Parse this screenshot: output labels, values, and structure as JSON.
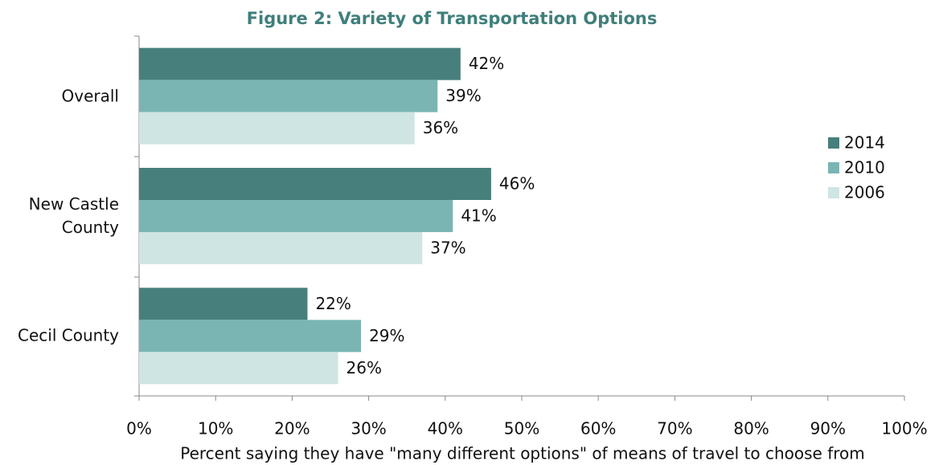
{
  "chart_data": {
    "type": "bar",
    "orientation": "horizontal",
    "title": "Figure 2: Variety of Transportation Options",
    "xlabel": "Percent saying they have \"many different options\" of means of travel to choose from",
    "categories": [
      "Overall",
      "New Castle County",
      "Cecil County"
    ],
    "series": [
      {
        "name": "2014",
        "color": "#477f7c",
        "values": [
          42,
          46,
          22
        ],
        "value_labels": [
          "42%",
          "46%",
          "22%"
        ]
      },
      {
        "name": "2010",
        "color": "#7ab5b3",
        "values": [
          39,
          41,
          29
        ],
        "value_labels": [
          "39%",
          "41%",
          "29%"
        ]
      },
      {
        "name": "2006",
        "color": "#cfe5e3",
        "values": [
          36,
          37,
          26
        ],
        "value_labels": [
          "36%",
          "37%",
          "26%"
        ]
      }
    ],
    "xlim": [
      0,
      100
    ],
    "xticks": [
      {
        "value": 0,
        "label": "0%"
      },
      {
        "value": 10,
        "label": "10%"
      },
      {
        "value": 20,
        "label": "20%"
      },
      {
        "value": 30,
        "label": "30%"
      },
      {
        "value": 40,
        "label": "40%"
      },
      {
        "value": 50,
        "label": "50%"
      },
      {
        "value": 60,
        "label": "60%"
      },
      {
        "value": 70,
        "label": "70%"
      },
      {
        "value": 80,
        "label": "80%"
      },
      {
        "value": 90,
        "label": "90%"
      },
      {
        "value": 100,
        "label": "100%"
      }
    ],
    "grid": false,
    "legend": "right"
  }
}
